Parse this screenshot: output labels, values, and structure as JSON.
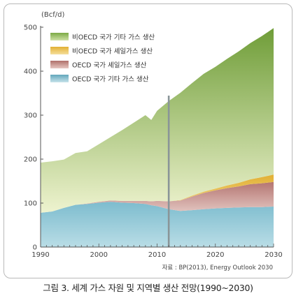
{
  "caption": "그림 3. 세계 가스 자원 및 지역별 생산 전망(1990~2030)",
  "chart_data": {
    "type": "area",
    "stacked": true,
    "ylabel": "(Bcf/d)",
    "xlabel": "",
    "ylim": [
      0,
      500
    ],
    "xlim": [
      1990,
      2030
    ],
    "yticks": [
      0,
      100,
      200,
      300,
      400,
      500
    ],
    "xticks": [
      1990,
      2000,
      2010,
      2020,
      2030
    ],
    "projection_divider_year": 2012,
    "legend_position": "top-left",
    "source": "자료 : BP(2013), Energy Outlook 2030",
    "x": [
      1990,
      1992,
      1994,
      1996,
      1998,
      2000,
      2002,
      2004,
      2006,
      2008,
      2009,
      2010,
      2012,
      2014,
      2016,
      2018,
      2020,
      2022,
      2024,
      2026,
      2028,
      2030
    ],
    "series": [
      {
        "name": "OECD 국가 기타 가스 생산",
        "color": "#6fb0c4",
        "values": [
          78,
          81,
          89,
          96,
          98,
          101,
          103,
          101,
          100,
          98,
          95,
          93,
          86,
          82,
          84,
          86,
          88,
          89,
          90,
          91,
          91,
          92
        ]
      },
      {
        "name": "OECD 국가 셰일가스 생산",
        "color": "#b77c78",
        "values": [
          0,
          0,
          0,
          0,
          1,
          2,
          3,
          4,
          5,
          7,
          9,
          12,
          18,
          24,
          31,
          37,
          41,
          45,
          48,
          52,
          54,
          56
        ]
      },
      {
        "name": "비OECD 국가 셰일가스 생산",
        "color": "#e3b53b",
        "values": [
          0,
          0,
          0,
          0,
          0,
          0,
          0,
          0,
          0,
          0,
          0,
          0,
          0,
          1,
          2,
          3,
          4,
          6,
          8,
          11,
          14,
          17
        ]
      },
      {
        "name": "비OECD 국가 기타 가스 생산",
        "color": "#8bb04e",
        "values": [
          114,
          114,
          110,
          118,
          119,
          131,
          144,
          161,
          178,
          195,
          185,
          205,
          228,
          244,
          256,
          268,
          277,
          288,
          299,
          310,
          321,
          333
        ]
      }
    ]
  }
}
